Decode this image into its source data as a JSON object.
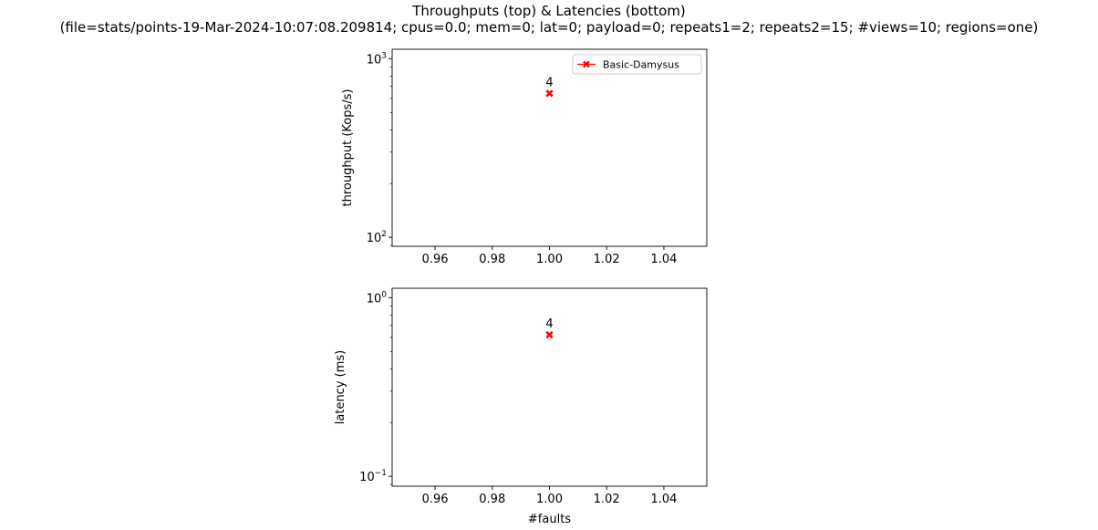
{
  "figure": {
    "title_line1": "Throughputs (top) & Latencies (bottom)",
    "title_line2": "(file=stats/points-19-Mar-2024-10:07:08.209814; cpus=0.0; mem=0; lat=0; payload=0; repeats1=2; repeats2=15; #views=10; regions=one)"
  },
  "chart_data": [
    {
      "type": "line",
      "xlabel": "",
      "ylabel": "throughput (Kops/s)",
      "yscale": "log",
      "xlim": [
        0.945,
        1.055
      ],
      "ylim": [
        89,
        1130
      ],
      "x_ticks": [
        "0.96",
        "0.98",
        "1.00",
        "1.02",
        "1.04"
      ],
      "y_ticks": [
        {
          "base": "10",
          "exp": "2",
          "value": 100
        },
        {
          "base": "10",
          "exp": "3",
          "value": 1000
        }
      ],
      "legend": {
        "placement": "upper right",
        "entries": [
          "Basic-Damysus"
        ]
      },
      "series": [
        {
          "name": "Basic-Damysus",
          "color": "#ff0000",
          "marker": "x",
          "x": [
            1.0
          ],
          "y": [
            640
          ],
          "labels": [
            "4"
          ]
        }
      ]
    },
    {
      "type": "line",
      "xlabel": "#faults",
      "ylabel": "latency (ms)",
      "yscale": "log",
      "xlim": [
        0.945,
        1.055
      ],
      "ylim": [
        0.088,
        1.13
      ],
      "x_ticks": [
        "0.96",
        "0.98",
        "1.00",
        "1.02",
        "1.04"
      ],
      "y_ticks": [
        {
          "base": "10",
          "exp": "−1",
          "value": 0.1
        },
        {
          "base": "10",
          "exp": "0",
          "value": 1
        }
      ],
      "series": [
        {
          "name": "Basic-Damysus",
          "color": "#ff0000",
          "marker": "x",
          "x": [
            1.0
          ],
          "y": [
            0.62
          ],
          "labels": [
            "4"
          ]
        }
      ]
    }
  ]
}
